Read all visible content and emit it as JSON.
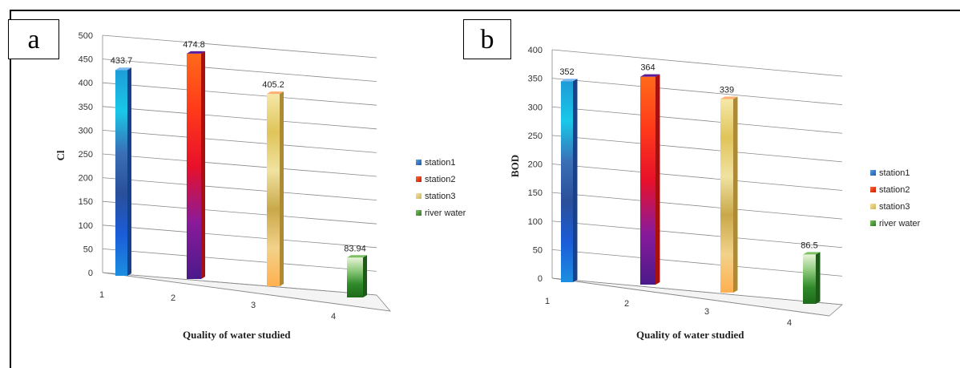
{
  "panels": [
    {
      "letter": "a",
      "chart_data": {
        "type": "bar",
        "categories": [
          "1",
          "2",
          "3",
          "4"
        ],
        "series": [
          {
            "name": "station1",
            "values": [
              433.7,
              null,
              null,
              null
            ]
          },
          {
            "name": "station2",
            "values": [
              null,
              474.8,
              null,
              null
            ]
          },
          {
            "name": "station3",
            "values": [
              null,
              null,
              405.2,
              null
            ]
          },
          {
            "name": "river water",
            "values": [
              null,
              null,
              null,
              83.94
            ]
          }
        ],
        "data_labels": [
          "433.7",
          "474.8",
          "405.2",
          "83.94"
        ],
        "yticks": [
          0,
          50,
          100,
          150,
          200,
          250,
          300,
          350,
          400,
          450,
          500
        ],
        "ylim": [
          0,
          500
        ],
        "xlabel": "Quality of water studied",
        "ylabel": "Cl",
        "grid": true,
        "legend_position": "right",
        "colors": {
          "station1": "#2f6fc0",
          "station2": "#ff4a1a",
          "station3": "#e6cf7a",
          "river water": "#3f8f2a"
        }
      }
    },
    {
      "letter": "b",
      "chart_data": {
        "type": "bar",
        "categories": [
          "1",
          "2",
          "3",
          "4"
        ],
        "series": [
          {
            "name": "station1",
            "values": [
              352,
              null,
              null,
              null
            ]
          },
          {
            "name": "station2",
            "values": [
              null,
              364,
              null,
              null
            ]
          },
          {
            "name": "station3",
            "values": [
              null,
              null,
              339,
              null
            ]
          },
          {
            "name": "river water",
            "values": [
              null,
              null,
              null,
              86.5
            ]
          }
        ],
        "data_labels": [
          "352",
          "364",
          "339",
          "86.5"
        ],
        "yticks": [
          0,
          50,
          100,
          150,
          200,
          250,
          300,
          350,
          400
        ],
        "ylim": [
          0,
          400
        ],
        "xlabel": "Quality of water studied",
        "ylabel": "BOD",
        "grid": true,
        "legend_position": "right",
        "colors": {
          "station1": "#2f6fc0",
          "station2": "#ff4a1a",
          "station3": "#e6cf7a",
          "river water": "#3f8f2a"
        }
      }
    }
  ]
}
